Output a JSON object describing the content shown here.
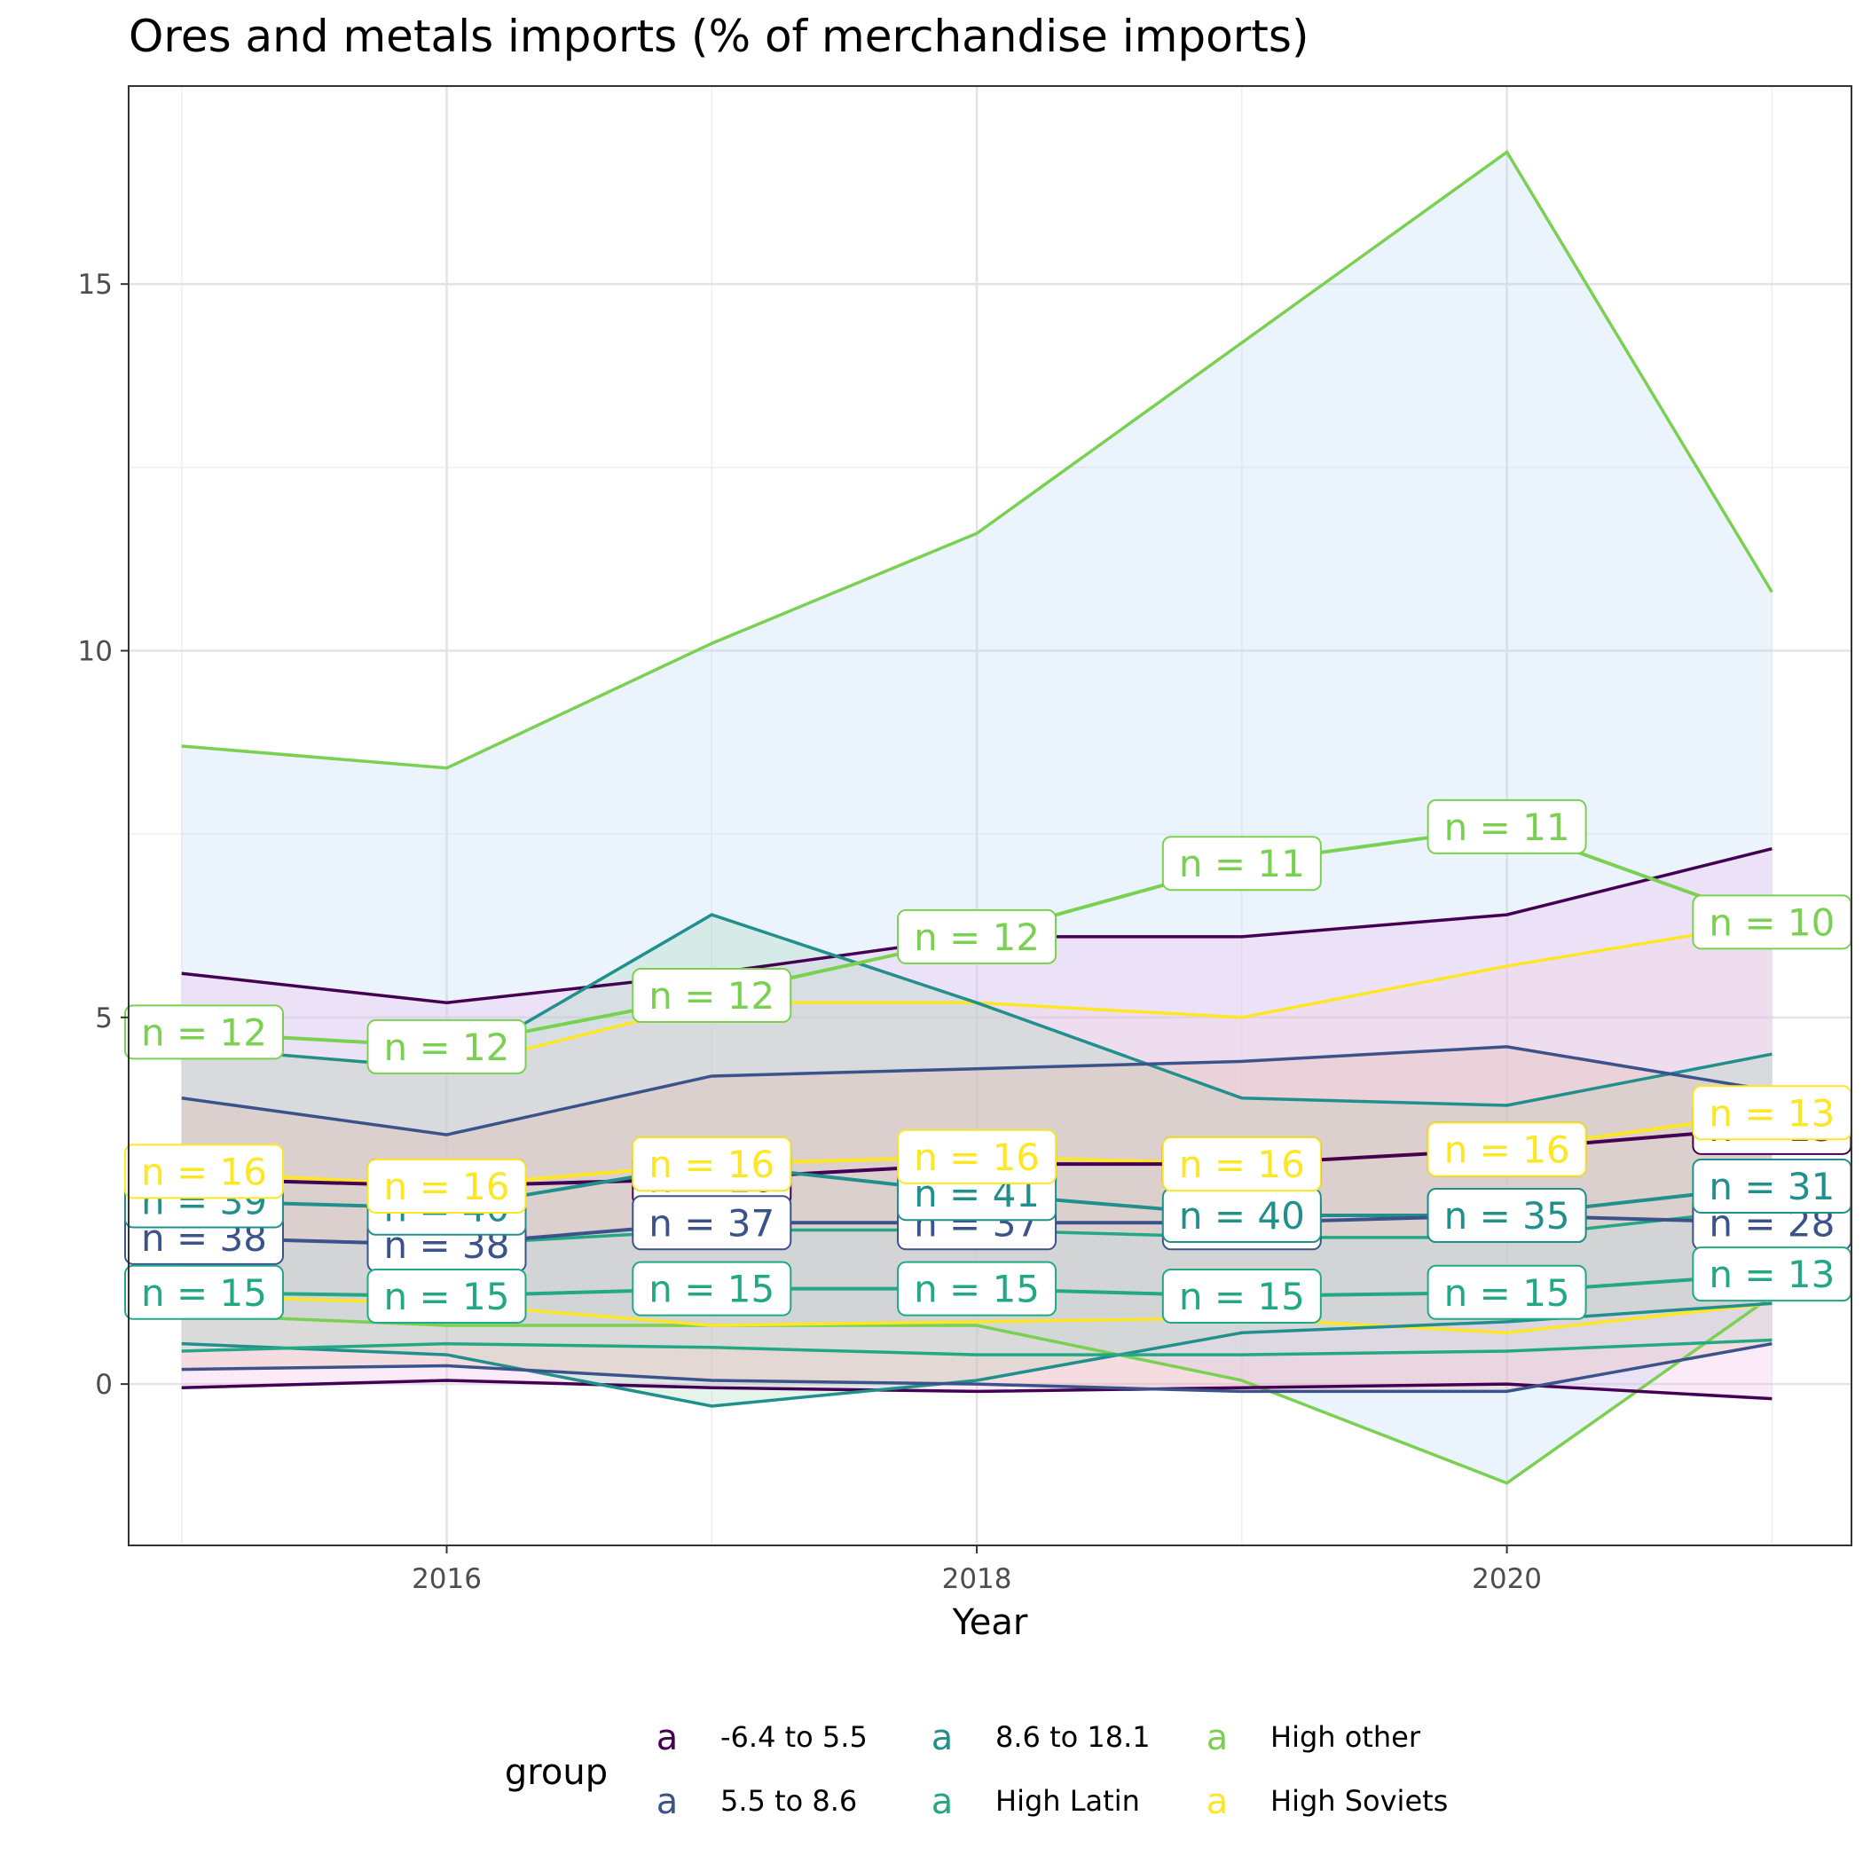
{
  "chart_data": {
    "type": "line",
    "title": "Ores and metals imports (% of merchandise imports)",
    "xlabel": "Year",
    "ylabel": "",
    "xlim": [
      2014.8,
      2021.3
    ],
    "ylim": [
      -2.2,
      17.7
    ],
    "x_ticks": [
      2016,
      2018,
      2020
    ],
    "y_ticks": [
      0,
      5,
      10,
      15
    ],
    "grid": true,
    "legend": {
      "title": "group",
      "placement": "bottom",
      "key_glyph": "a"
    },
    "x": [
      2015,
      2016,
      2017,
      2018,
      2019,
      2020,
      2021
    ],
    "series": [
      {
        "name": "-6.4 to 5.5",
        "color": "#440154",
        "band_fill": "#f2b8e8",
        "mean": [
          2.8,
          2.7,
          2.8,
          3.0,
          3.0,
          3.2,
          3.5
        ],
        "upper": [
          5.6,
          5.2,
          5.6,
          6.1,
          6.1,
          6.4,
          7.3
        ],
        "lower": [
          -0.05,
          0.05,
          -0.05,
          -0.1,
          -0.05,
          0.0,
          -0.2
        ],
        "n": [
          "n = 16",
          "n = 16",
          "n = 16",
          "n = 16",
          "n = 16",
          "n = 16",
          "n = 13"
        ]
      },
      {
        "name": "5.5 to 8.6",
        "color": "#3b528b",
        "band_fill": "#e6b8a6",
        "mean": [
          2.0,
          1.9,
          2.2,
          2.2,
          2.2,
          2.3,
          2.2
        ],
        "upper": [
          3.9,
          3.4,
          4.2,
          4.3,
          4.4,
          4.6,
          4.0
        ],
        "lower": [
          0.2,
          0.25,
          0.05,
          0.0,
          -0.1,
          -0.1,
          0.55
        ],
        "n": [
          "n = 38",
          "n = 38",
          "n = 37",
          "n = 37",
          "n = 37",
          "n = 35",
          "n = 28"
        ]
      },
      {
        "name": "8.6 to 18.1",
        "color": "#21908d",
        "band_fill": "#a3d9b5",
        "mean": [
          2.5,
          2.4,
          3.0,
          2.6,
          2.3,
          2.3,
          2.7
        ],
        "upper": [
          4.6,
          4.3,
          6.4,
          5.2,
          3.9,
          3.8,
          4.5
        ],
        "lower": [
          0.55,
          0.4,
          -0.3,
          0.05,
          0.7,
          0.85,
          1.1
        ],
        "n": [
          "n = 39",
          "n = 40",
          "n = 37",
          "n = 41",
          "n = 40",
          "n = 35",
          "n = 31"
        ]
      },
      {
        "name": "High Latin",
        "color": "#22a884",
        "band_fill": "#bfe0e8",
        "mean": [
          1.25,
          1.2,
          1.3,
          1.3,
          1.2,
          1.25,
          1.5
        ],
        "upper": [
          2.0,
          1.9,
          2.1,
          2.1,
          2.0,
          2.0,
          2.4
        ],
        "lower": [
          0.45,
          0.55,
          0.5,
          0.4,
          0.4,
          0.45,
          0.6
        ],
        "n": [
          "n = 15",
          "n = 15",
          "n = 15",
          "n = 15",
          "n = 15",
          "n = 15",
          "n = 13"
        ]
      },
      {
        "name": "High other",
        "color": "#7ad151",
        "band_fill": "#b8d5f8",
        "mean": [
          4.8,
          4.6,
          5.3,
          6.1,
          7.1,
          7.6,
          6.3
        ],
        "upper": [
          8.7,
          8.4,
          10.1,
          11.6,
          14.2,
          16.8,
          10.8
        ],
        "lower": [
          0.95,
          0.8,
          0.8,
          0.8,
          0.05,
          -1.35,
          1.2
        ],
        "n": [
          "n = 12",
          "n = 12",
          "n = 12",
          "n = 12",
          "n = 11",
          "n = 11",
          "n = 10"
        ]
      },
      {
        "name": "High Soviets",
        "color": "#fde725",
        "band_fill": "#f9d3d3",
        "mean": [
          2.9,
          2.7,
          3.0,
          3.1,
          3.0,
          3.2,
          3.7
        ],
        "upper": [
          4.6,
          4.3,
          5.2,
          5.2,
          5.0,
          5.7,
          6.3
        ],
        "lower": [
          1.2,
          1.1,
          0.8,
          0.85,
          0.9,
          0.7,
          1.1
        ],
        "n": [
          "n = 16",
          "n = 16",
          "n = 16",
          "n = 16",
          "n = 16",
          "n = 16",
          "n = 13"
        ]
      }
    ]
  }
}
